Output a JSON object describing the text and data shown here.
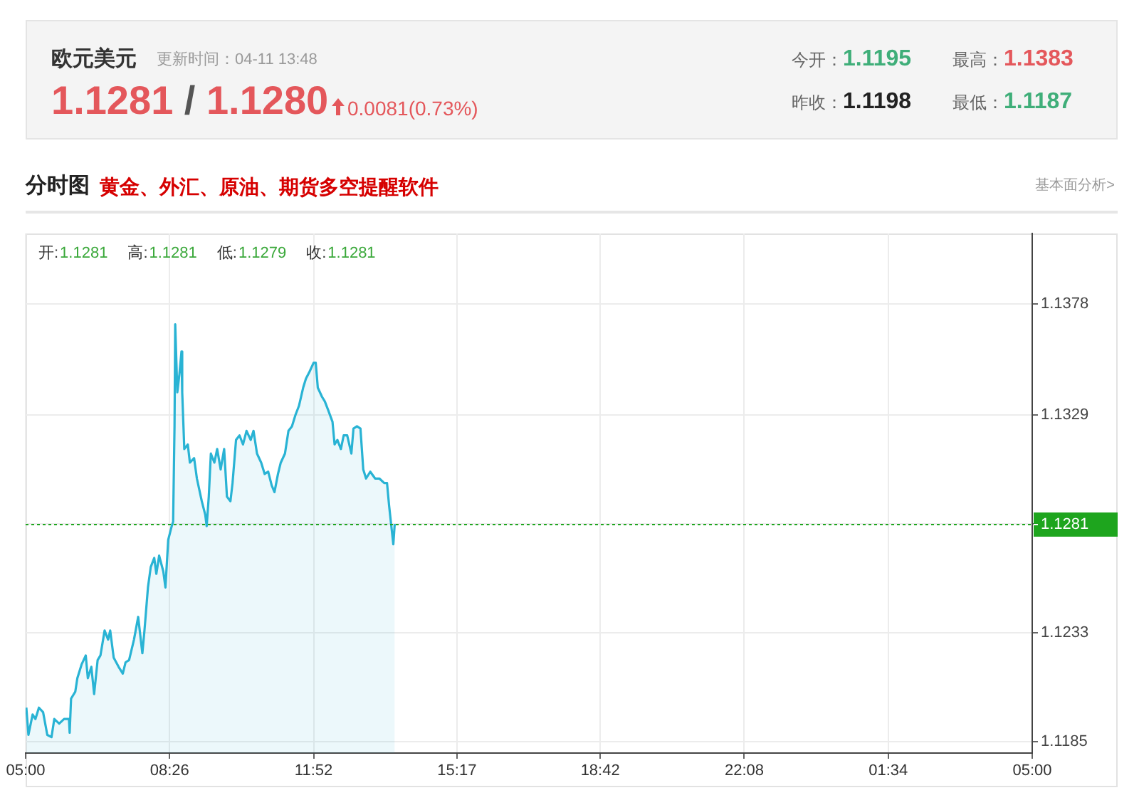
{
  "chart_data": {
    "type": "area",
    "title": "欧元美元",
    "subtitle": "更新时间：04-11 13:48",
    "annotations": [
      "1.1281 / 1.1280",
      "0.0081(0.73%)",
      "今开：1.1195",
      "最高：1.1383",
      "昨收：1.1198",
      "最低：1.1187",
      "分时图",
      "黄金、外汇、原油、期货多空提醒软件",
      "基本面分析>",
      "开:1.1281",
      "高:1.1281",
      "低:1.1279",
      "收:1.1281"
    ],
    "x": [
      "--04-11T05:01",
      "--04-11T05:04",
      "--04-11T05:10",
      "--04-11T05:14",
      "--04-11T05:19",
      "--04-11T05:25",
      "--04-11T05:31",
      "--04-11T05:37",
      "--04-11T05:41",
      "--04-11T05:48",
      "--04-11T05:55",
      "--04-11T06:02",
      "--04-11T06:03",
      "--04-11T06:05",
      "--04-11T06:11",
      "--04-11T06:14",
      "--04-11T06:20",
      "--04-11T06:26",
      "--04-11T06:29",
      "--04-11T06:34",
      "--04-11T06:38",
      "--04-11T06:43",
      "--04-11T06:47",
      "--04-11T06:53",
      "--04-11T06:58",
      "--04-11T07:01",
      "--04-11T07:06",
      "--04-11T07:13",
      "--04-11T07:19",
      "--04-11T07:23",
      "--04-11T07:28",
      "--04-11T07:35",
      "--04-11T07:41",
      "--04-11T07:47",
      "--04-11T07:50",
      "--04-11T07:55",
      "--04-11T07:59",
      "--04-11T08:04",
      "--04-11T08:07",
      "--04-11T08:11",
      "--04-11T08:17",
      "--04-11T08:20",
      "--04-11T08:24",
      "--04-11T08:29",
      "--04-11T08:31",
      "--04-11T08:33",
      "--04-11T08:34",
      "--04-11T08:37",
      "--04-11T08:40",
      "--04-11T08:43",
      "--04-11T08:44",
      "--04-11T08:47",
      "--04-11T08:52",
      "--04-11T08:55",
      "--04-11T09:01",
      "--04-11T09:05",
      "--04-11T09:12",
      "--04-11T09:17",
      "--04-11T09:19",
      "--04-11T09:22",
      "--04-11T09:25",
      "--04-11T09:30",
      "--04-11T09:34",
      "--04-11T09:39",
      "--04-11T09:44",
      "--04-11T09:48",
      "--04-11T09:53",
      "--04-11T09:56",
      "--04-11T10:01",
      "--04-11T10:06",
      "--04-11T10:11",
      "--04-11T10:16",
      "--04-11T10:22",
      "--04-11T10:26",
      "--04-11T10:31",
      "--04-11T10:37",
      "--04-11T10:42",
      "--04-11T10:47",
      "--04-11T10:52",
      "--04-11T10:56",
      "--04-11T11:01",
      "--04-11T11:05",
      "--04-11T11:11",
      "--04-11T11:16",
      "--04-11T11:21",
      "--04-11T11:26",
      "--04-11T11:31",
      "--04-11T11:37",
      "--04-11T11:41",
      "--04-11T11:46",
      "--04-11T11:52",
      "--04-11T11:55",
      "--04-11T11:58",
      "--04-11T12:04",
      "--04-11T12:08",
      "--04-11T12:13",
      "--04-11T12:19",
      "--04-11T12:22",
      "--04-11T12:26",
      "--04-11T12:31",
      "--04-11T12:35",
      "--04-11T12:40",
      "--04-11T12:46",
      "--04-11T12:49",
      "--04-11T12:54",
      "--04-11T12:59",
      "--04-11T13:03",
      "--04-11T13:07",
      "--04-11T13:13",
      "--04-11T13:20",
      "--04-11T13:26",
      "--04-11T13:33",
      "--04-11T13:37",
      "--04-11T13:40",
      "--04-11T13:46",
      "--04-11T13:48"
    ],
    "values": [
      1.12,
      1.1188,
      1.1197,
      1.1195,
      1.12,
      1.1198,
      1.1188,
      1.1187,
      1.1195,
      1.1193,
      1.1195,
      1.1195,
      1.1189,
      1.1204,
      1.1207,
      1.1213,
      1.1219,
      1.1223,
      1.1213,
      1.1218,
      1.1206,
      1.1221,
      1.1223,
      1.1234,
      1.123,
      1.1234,
      1.1222,
      1.1218,
      1.1215,
      1.122,
      1.1221,
      1.123,
      1.124,
      1.1224,
      1.1234,
      1.1253,
      1.1262,
      1.1266,
      1.1259,
      1.1267,
      1.126,
      1.1253,
      1.1274,
      1.128,
      1.1282,
      1.1324,
      1.1369,
      1.1339,
      1.1347,
      1.1357,
      1.1339,
      1.1314,
      1.1316,
      1.1308,
      1.131,
      1.1301,
      1.1291,
      1.1285,
      1.128,
      1.1293,
      1.1312,
      1.1308,
      1.1314,
      1.1305,
      1.1314,
      1.1293,
      1.1291,
      1.1299,
      1.1318,
      1.132,
      1.1316,
      1.1322,
      1.1318,
      1.1322,
      1.1312,
      1.1308,
      1.1303,
      1.1304,
      1.1298,
      1.1295,
      1.1303,
      1.1308,
      1.1312,
      1.1322,
      1.1324,
      1.1329,
      1.1333,
      1.1341,
      1.1345,
      1.1348,
      1.1352,
      1.1352,
      1.1341,
      1.1337,
      1.1335,
      1.1331,
      1.1326,
      1.1316,
      1.1318,
      1.1314,
      1.132,
      1.132,
      1.1312,
      1.1323,
      1.1324,
      1.1323,
      1.1305,
      1.1301,
      1.1304,
      1.1301,
      1.1301,
      1.1299,
      1.1299,
      1.1289,
      1.1272,
      1.1281
    ],
    "color": "#29b3d4",
    "xlim": [
      "--04-11T05:00",
      "--04-12T05:00"
    ],
    "xticks": [
      {
        "value": "--04-11T05:00",
        "label": "05:00"
      },
      {
        "value": "--04-11T08:26",
        "label": "08:26"
      },
      {
        "value": "--04-11T11:52",
        "label": "11:52"
      },
      {
        "value": "--04-11T15:17",
        "label": "15:17"
      },
      {
        "value": "--04-11T18:42",
        "label": "18:42"
      },
      {
        "value": "--04-11T22:08",
        "label": "22:08"
      },
      {
        "value": "--04-12T01:34",
        "label": "01:34"
      },
      {
        "value": "--04-12T05:00",
        "label": "05:00"
      }
    ],
    "ylim": [
      1.118,
      1.1409
    ],
    "yticks": [
      1.1185,
      1.1233,
      {
        "value": 1.1281,
        "label": null
      },
      1.1329,
      1.1378
    ],
    "grid": true,
    "ref_lines": [
      {
        "axis": "y",
        "value": 1.1281,
        "label": "1.1281",
        "color": "#1ea51e",
        "line_style": "dotted"
      }
    ]
  }
}
